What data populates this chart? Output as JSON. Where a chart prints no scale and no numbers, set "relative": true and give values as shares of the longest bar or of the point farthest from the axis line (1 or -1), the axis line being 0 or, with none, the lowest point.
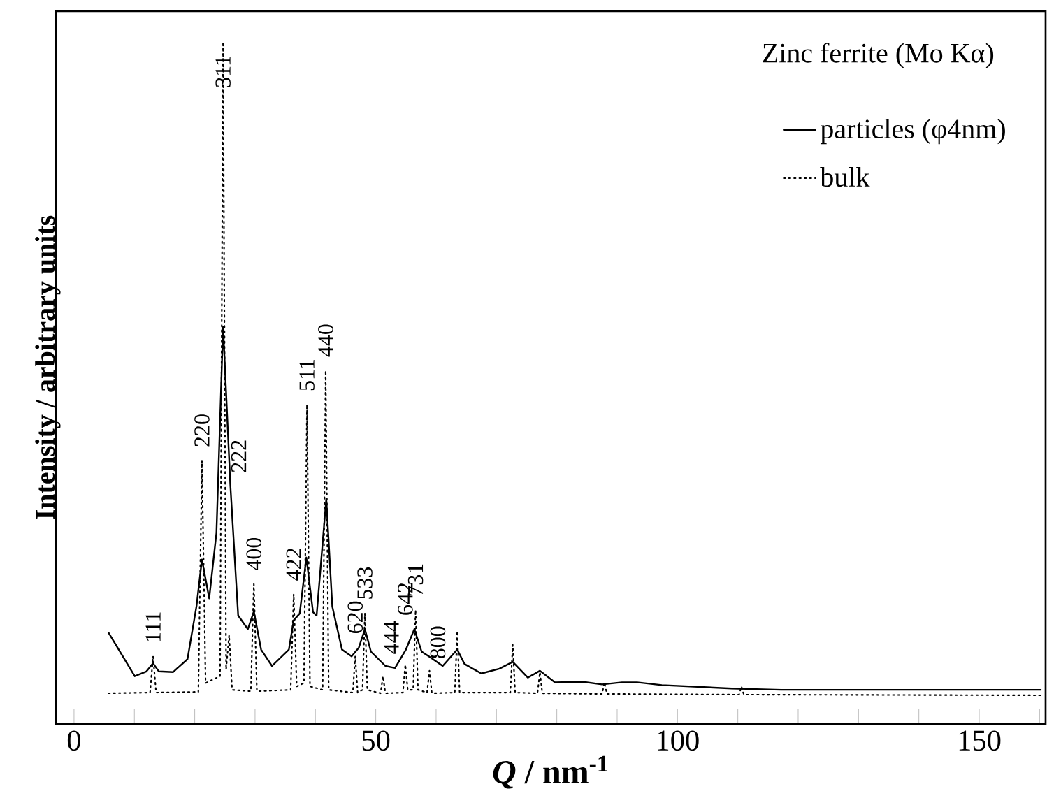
{
  "chart_data": {
    "type": "line",
    "title": "Zinc ferrite (Mo Kα)",
    "xlabel": "*Q* / nm$^{-1}$",
    "ylabel": "Intensity / arbitrary units",
    "relative": true,
    "xlim": [
      -3,
      161
    ],
    "xticks": [
      0,
      {
        "value": 10,
        "label": null
      },
      {
        "value": 20,
        "label": null
      },
      {
        "value": 30,
        "label": null
      },
      {
        "value": 40,
        "label": null
      },
      50,
      {
        "value": 60,
        "label": null
      },
      {
        "value": 70,
        "label": null
      },
      {
        "value": 80,
        "label": null
      },
      {
        "value": 90,
        "label": null
      },
      100,
      {
        "value": 110,
        "label": null
      },
      {
        "value": 120,
        "label": null
      },
      {
        "value": 130,
        "label": null
      },
      {
        "value": 140,
        "label": null
      },
      150,
      {
        "value": 160,
        "label": null
      }
    ],
    "legend": "top right",
    "grid": false,
    "marker": "none",
    "series": [
      {
        "name": "particles (φ4nm)",
        "color": "#000000",
        "line_style": "solid",
        "x": [
          5.7,
          10.06,
          12.0,
          13.1,
          14.05,
          16.4,
          18.8,
          20.3,
          21.2,
          22.4,
          23.6,
          24.7,
          25.9,
          27.2,
          28.8,
          29.8,
          31.0,
          32.8,
          35.6,
          36.4,
          37.4,
          38.5,
          39.6,
          40.2,
          41.8,
          42.8,
          44.4,
          46.0,
          47.2,
          48.2,
          49.2,
          51.6,
          53.2,
          55.0,
          56.4,
          57.6,
          58.8,
          61.1,
          63.5,
          64.7,
          67.5,
          70.5,
          72.7,
          75.2,
          77.2,
          79.7,
          84.2,
          87.5,
          90.8,
          93.3,
          97.4,
          109,
          117.2,
          160.2
        ],
        "values": [
          0.134,
          0.07,
          0.077,
          0.089,
          0.077,
          0.076,
          0.095,
          0.173,
          0.241,
          0.184,
          0.28,
          0.582,
          0.351,
          0.159,
          0.139,
          0.165,
          0.109,
          0.085,
          0.109,
          0.152,
          0.162,
          0.244,
          0.164,
          0.159,
          0.33,
          0.172,
          0.109,
          0.099,
          0.112,
          0.139,
          0.106,
          0.085,
          0.082,
          0.109,
          0.139,
          0.106,
          0.099,
          0.085,
          0.109,
          0.088,
          0.074,
          0.081,
          0.091,
          0.068,
          0.078,
          0.061,
          0.062,
          0.058,
          0.061,
          0.061,
          0.057,
          0.052,
          0.05,
          0.05
        ]
      },
      {
        "name": "bulk",
        "color": "#000000",
        "line_style": "dotted",
        "x": [
          5.7,
          12.6,
          13.1,
          13.6,
          20.6,
          21.2,
          21.8,
          24.2,
          24.7,
          25.2,
          25.7,
          26.2,
          29.3,
          29.8,
          30.3,
          35.9,
          36.4,
          36.9,
          38.1,
          38.6,
          39.1,
          41.2,
          41.7,
          42.2,
          46.2,
          46.6,
          47.0,
          47.8,
          48.2,
          48.6,
          50.8,
          51.2,
          51.6,
          54.5,
          54.9,
          55.3,
          56.2,
          56.6,
          57.0,
          58.5,
          58.9,
          59.3,
          63.1,
          63.5,
          63.9,
          72.3,
          72.7,
          73.1,
          76.8,
          77.2,
          77.6,
          87.5,
          87.9,
          88.3,
          110.2,
          110.6,
          111.0,
          160.2
        ],
        "values": [
          0.045,
          0.046,
          0.099,
          0.046,
          0.047,
          0.386,
          0.06,
          0.07,
          1.0,
          0.08,
          0.13,
          0.05,
          0.048,
          0.205,
          0.048,
          0.05,
          0.19,
          0.055,
          0.06,
          0.468,
          0.055,
          0.05,
          0.518,
          0.05,
          0.046,
          0.099,
          0.046,
          0.05,
          0.162,
          0.05,
          0.045,
          0.07,
          0.045,
          0.046,
          0.087,
          0.05,
          0.05,
          0.167,
          0.05,
          0.046,
          0.078,
          0.045,
          0.046,
          0.136,
          0.046,
          0.046,
          0.116,
          0.046,
          0.045,
          0.076,
          0.045,
          0.044,
          0.061,
          0.044,
          0.043,
          0.055,
          0.043,
          0.042
        ]
      }
    ],
    "annotations": [
      {
        "text": "111",
        "x": 13.1,
        "y": 0.099
      },
      {
        "text": "220",
        "x": 21.2,
        "y": 0.386
      },
      {
        "text": "311",
        "x": 24.7,
        "y": 1.0
      },
      {
        "text": "222",
        "x": 25.9,
        "y": 0.351
      },
      {
        "text": "400",
        "x": 29.8,
        "y": 0.205
      },
      {
        "text": "422",
        "x": 36.4,
        "y": 0.19
      },
      {
        "text": "511",
        "x": 38.6,
        "y": 0.468
      },
      {
        "text": "440",
        "x": 41.7,
        "y": 0.518
      },
      {
        "text": "620",
        "x": 46.6,
        "y": 0.099
      },
      {
        "text": "533",
        "x": 48.2,
        "y": 0.162
      },
      {
        "text": "444",
        "x": 51.2,
        "y": 0.07
      },
      {
        "text": "642",
        "x": 54.9,
        "y": 0.087
      },
      {
        "text": "731",
        "x": 56.6,
        "y": 0.167
      },
      {
        "text": "800",
        "x": 58.9,
        "y": 0.078
      }
    ]
  }
}
